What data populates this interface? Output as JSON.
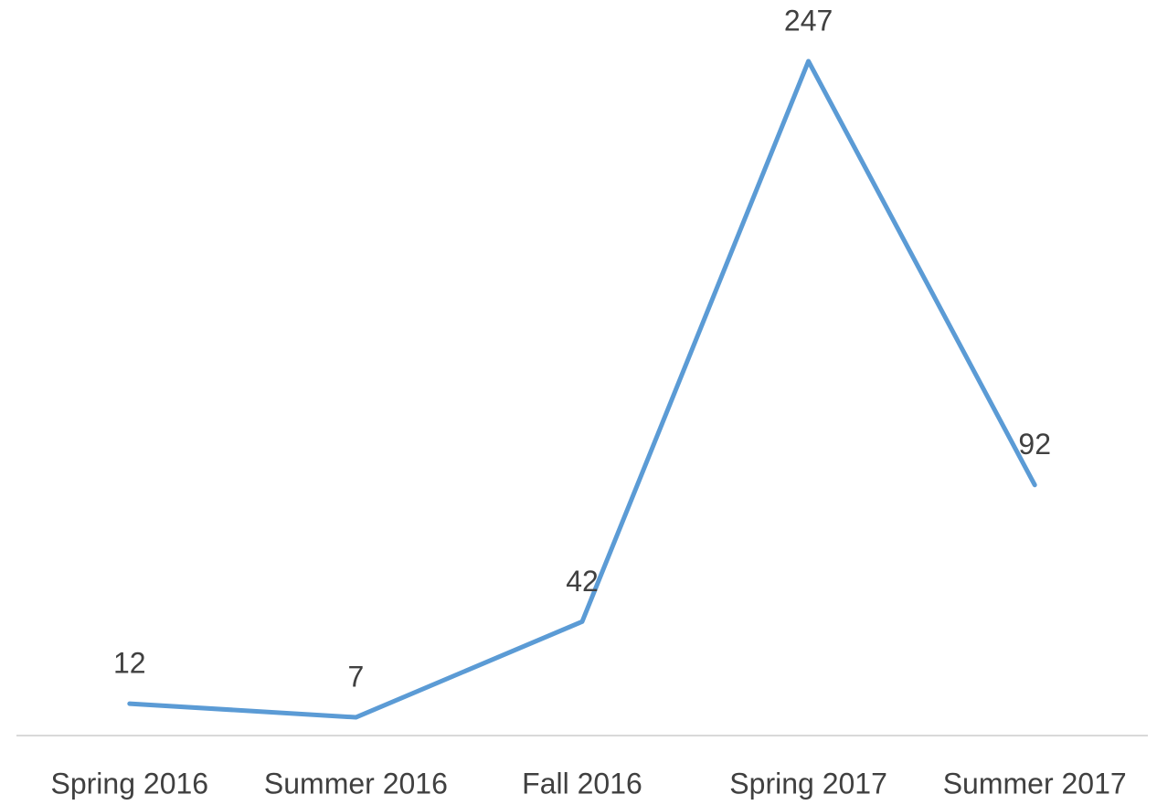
{
  "chart_data": {
    "type": "line",
    "categories": [
      "Spring 2016",
      "Summer 2016",
      "Fall 2016",
      "Spring 2017",
      "Summer 2017"
    ],
    "series": [
      {
        "values": [
          12,
          7,
          42,
          247,
          92
        ],
        "color": "#5b9bd5"
      }
    ],
    "ylim": [
      0,
      250
    ],
    "data_labels": true
  }
}
